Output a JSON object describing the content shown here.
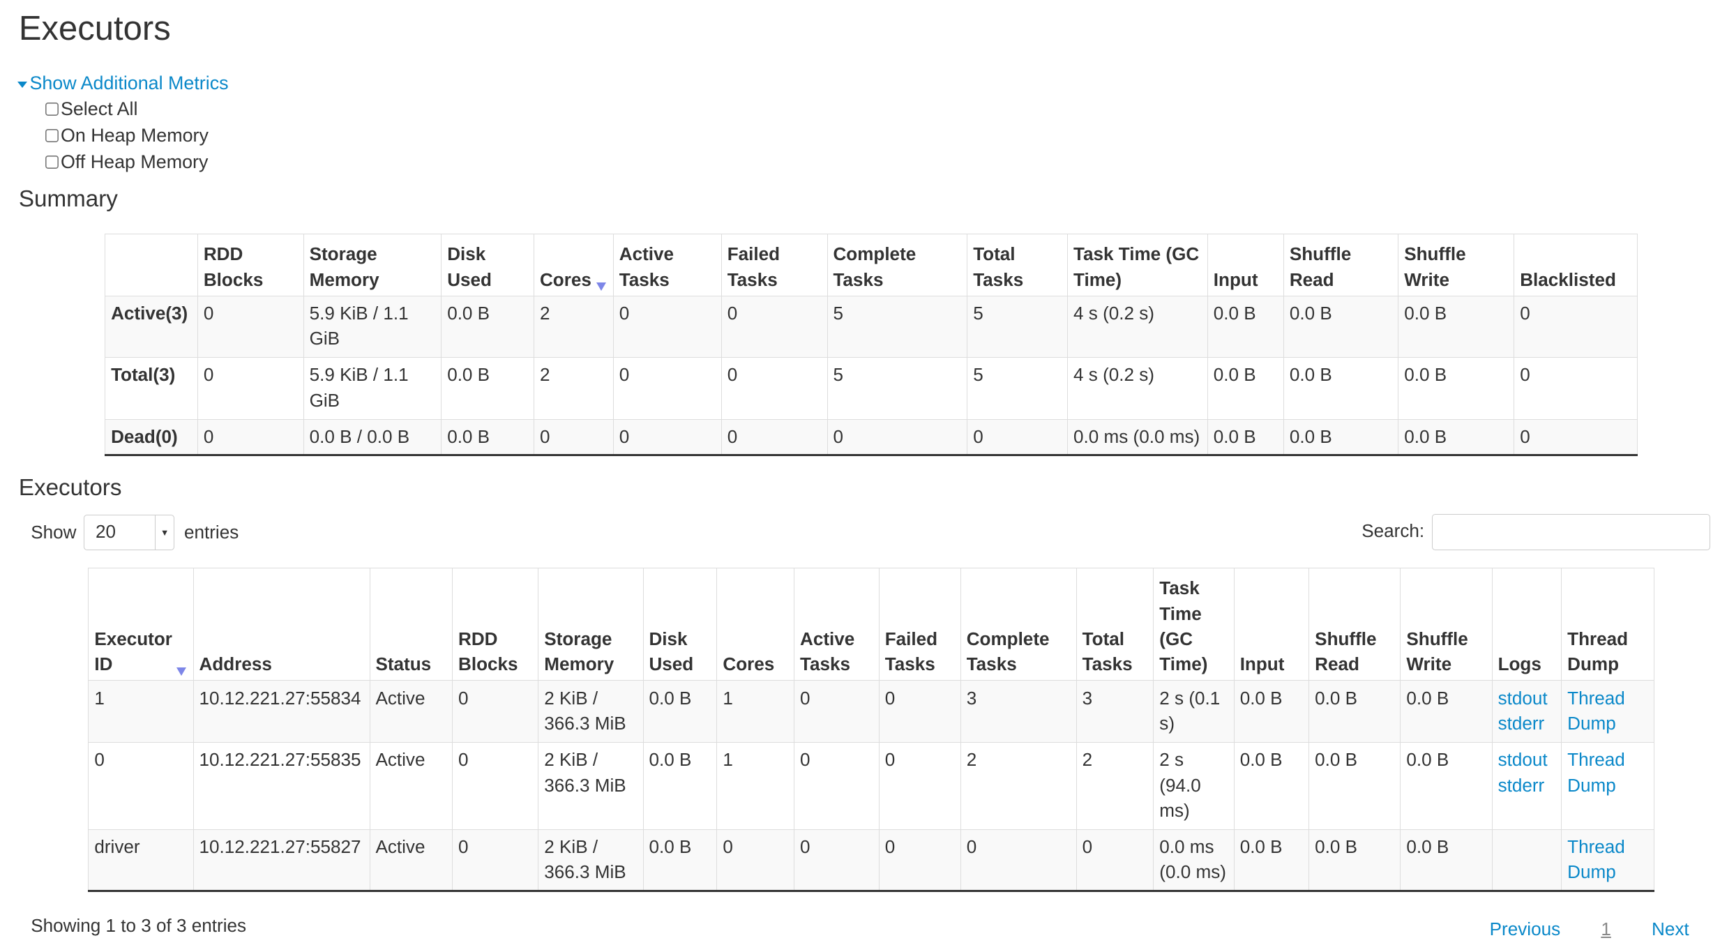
{
  "page_title": "Executors",
  "metrics_toggle": "Show Additional Metrics",
  "metric_options": [
    {
      "label": "Select All",
      "checked": false
    },
    {
      "label": "On Heap Memory",
      "checked": false
    },
    {
      "label": "Off Heap Memory",
      "checked": false
    }
  ],
  "summary": {
    "title": "Summary",
    "headers": [
      "",
      "RDD Blocks",
      "Storage Memory",
      "Disk Used",
      "Cores",
      "Active Tasks",
      "Failed Tasks",
      "Complete Tasks",
      "Total Tasks",
      "Task Time (GC Time)",
      "Input",
      "Shuffle Read",
      "Shuffle Write",
      "Blacklisted"
    ],
    "sorted_column": "Cores",
    "rows": [
      [
        "Active(3)",
        "0",
        "5.9 KiB / 1.1 GiB",
        "0.0 B",
        "2",
        "0",
        "0",
        "5",
        "5",
        "4 s (0.2 s)",
        "0.0 B",
        "0.0 B",
        "0.0 B",
        "0"
      ],
      [
        "Total(3)",
        "0",
        "5.9 KiB / 1.1 GiB",
        "0.0 B",
        "2",
        "0",
        "0",
        "5",
        "5",
        "4 s (0.2 s)",
        "0.0 B",
        "0.0 B",
        "0.0 B",
        "0"
      ],
      [
        "Dead(0)",
        "0",
        "0.0 B / 0.0 B",
        "0.0 B",
        "0",
        "0",
        "0",
        "0",
        "0",
        "0.0 ms (0.0 ms)",
        "0.0 B",
        "0.0 B",
        "0.0 B",
        "0"
      ]
    ]
  },
  "executors": {
    "title": "Executors",
    "show_label": "Show",
    "page_size": "20",
    "entries_label": "entries",
    "search_label": "Search:",
    "search_value": "",
    "headers": [
      "Executor ID",
      "Address",
      "Status",
      "RDD Blocks",
      "Storage Memory",
      "Disk Used",
      "Cores",
      "Active Tasks",
      "Failed Tasks",
      "Complete Tasks",
      "Total Tasks",
      "Task Time (GC Time)",
      "Input",
      "Shuffle Read",
      "Shuffle Write",
      "Logs",
      "Thread Dump"
    ],
    "sorted_column": "Executor ID",
    "rows": [
      {
        "cells": [
          "1",
          "10.12.221.27:55834",
          "Active",
          "0",
          "2 KiB / 366.3 MiB",
          "0.0 B",
          "1",
          "0",
          "0",
          "3",
          "3",
          "2 s (0.1 s)",
          "0.0 B",
          "0.0 B",
          "0.0 B"
        ],
        "logs": [
          "stdout",
          "stderr"
        ],
        "thread_dump": "Thread Dump"
      },
      {
        "cells": [
          "0",
          "10.12.221.27:55835",
          "Active",
          "0",
          "2 KiB / 366.3 MiB",
          "0.0 B",
          "1",
          "0",
          "0",
          "2",
          "2",
          "2 s (94.0 ms)",
          "0.0 B",
          "0.0 B",
          "0.0 B"
        ],
        "logs": [
          "stdout",
          "stderr"
        ],
        "thread_dump": "Thread Dump"
      },
      {
        "cells": [
          "driver",
          "10.12.221.27:55827",
          "Active",
          "0",
          "2 KiB / 366.3 MiB",
          "0.0 B",
          "0",
          "0",
          "0",
          "0",
          "0",
          "0.0 ms (0.0 ms)",
          "0.0 B",
          "0.0 B",
          "0.0 B"
        ],
        "logs": [],
        "thread_dump": "Thread Dump"
      }
    ],
    "info": "Showing 1 to 3 of 3 entries",
    "pagination": {
      "previous": "Previous",
      "current": "1",
      "next": "Next"
    }
  },
  "colors": {
    "link": "#0a88c9",
    "sort_indicator": "#7d86e8",
    "stripe": "#f9f9f9",
    "border": "#dddddd"
  }
}
